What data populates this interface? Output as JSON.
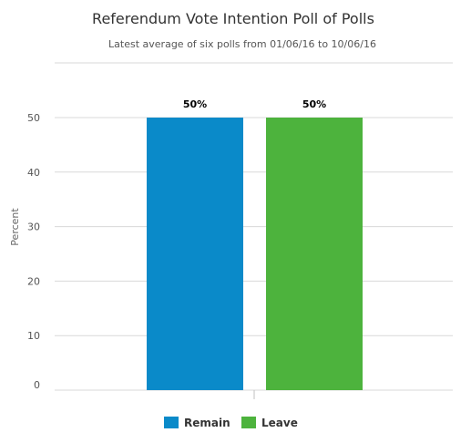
{
  "chart_data": {
    "type": "bar",
    "title": "Referendum Vote Intention Poll of Polls",
    "subtitle": "Latest average of six polls from 01/06/16 to 10/06/16",
    "ylabel": "Percent",
    "xlabel": "",
    "ylim": [
      0,
      50
    ],
    "y_ticks": [
      0,
      10,
      20,
      30,
      40,
      50
    ],
    "grid": true,
    "legend_position": "bottom-center",
    "series": [
      {
        "name": "Remain",
        "value": 50,
        "data_label": "50%",
        "color": "#0a8ac9"
      },
      {
        "name": "Leave",
        "value": 50,
        "data_label": "50%",
        "color": "#4db33d"
      }
    ]
  }
}
